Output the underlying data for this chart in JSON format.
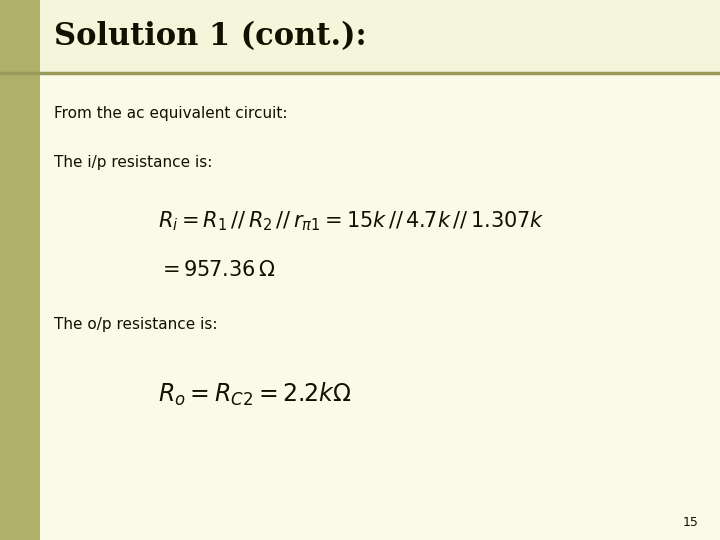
{
  "title": "Solution 1 (cont.):",
  "title_color": "#111100",
  "title_bg": "#f5f5dc",
  "title_fontsize": 22,
  "slide_bg": "#fafae8",
  "left_bar_color": "#b0b06a",
  "left_bar_width": 0.055,
  "separator_color": "#9a9a5a",
  "body_text1": "From the ac equivalent circuit:",
  "body_text2": "The i/p resistance is:",
  "body_text3": "The o/p resistance is:",
  "formula1": "$R_i = R_1 \\,//\\, R_2 \\,//\\, r_{\\pi 1} = 15k \\,//\\, 4.7k \\,//\\, 1.307k$",
  "formula2": "$= 957.36\\,\\Omega$",
  "formula3": "$R_o = R_{C2} = 2.2k\\Omega$",
  "body_fontsize": 11,
  "formula_fontsize": 15,
  "formula3_fontsize": 17,
  "page_number": "15",
  "text_color": "#111100"
}
